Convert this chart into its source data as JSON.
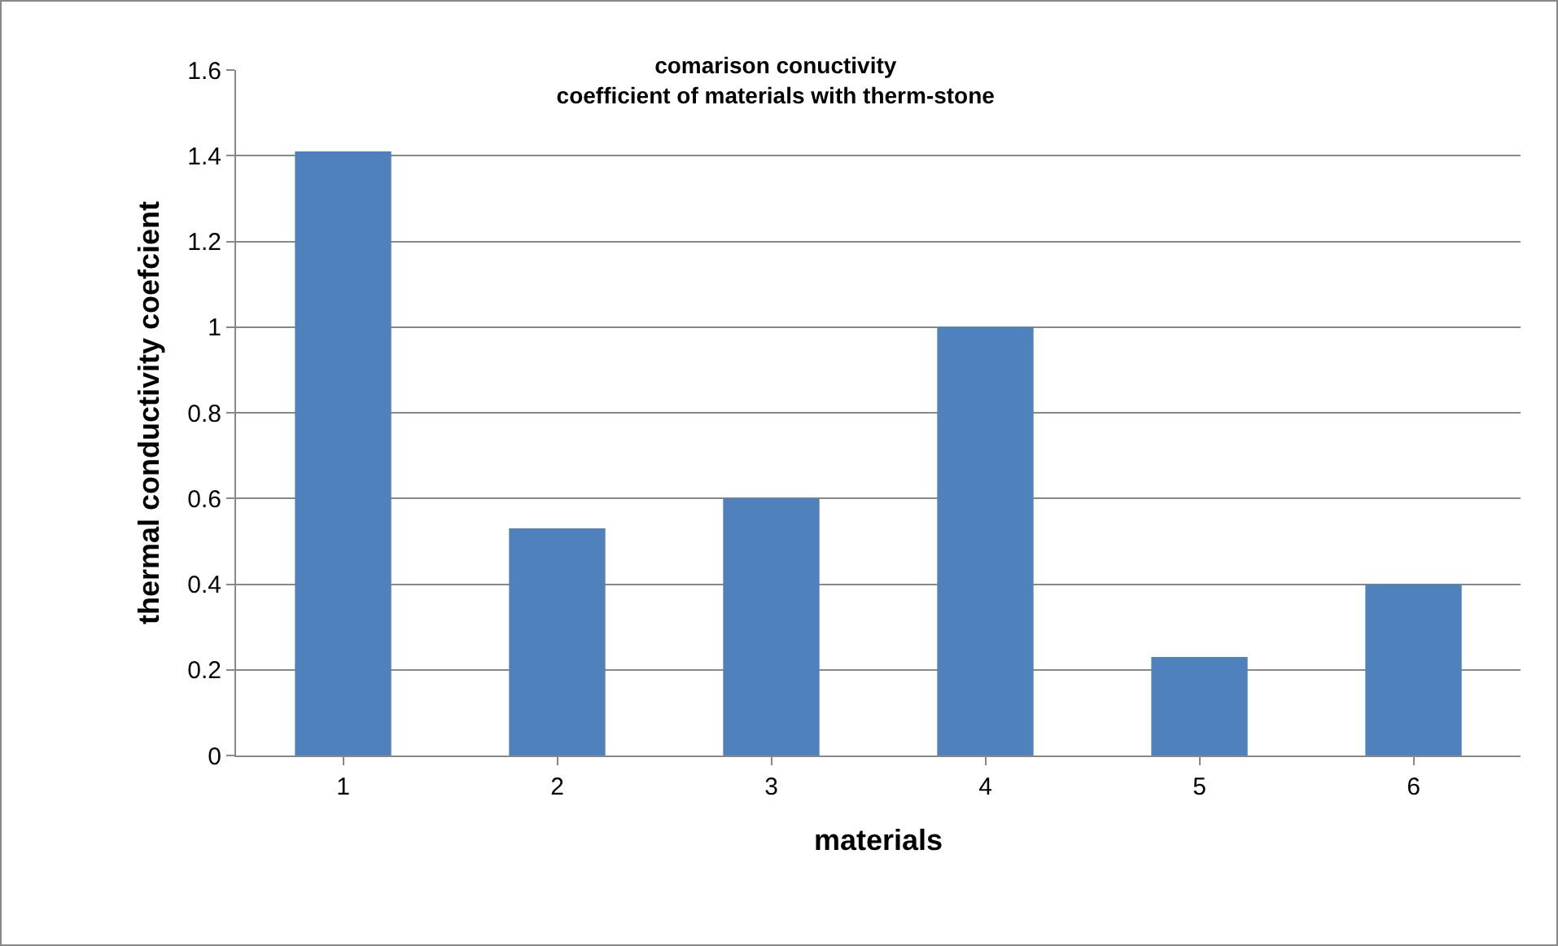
{
  "chart_data": {
    "type": "bar",
    "title": "comarison conuctivity\ncoefficient of materials with therm-stone",
    "xlabel": "materials",
    "ylabel": "thermal conductivity coefcient",
    "categories": [
      "1",
      "2",
      "3",
      "4",
      "5",
      "6"
    ],
    "values": [
      1.41,
      0.53,
      0.6,
      1.0,
      0.23,
      0.4
    ],
    "color": "#4f81bd",
    "ylim": [
      0,
      1.6
    ],
    "yticks": [
      0,
      0.2,
      0.4,
      0.6,
      0.8,
      1,
      1.2,
      1.4,
      1.6
    ],
    "grid": "y"
  }
}
